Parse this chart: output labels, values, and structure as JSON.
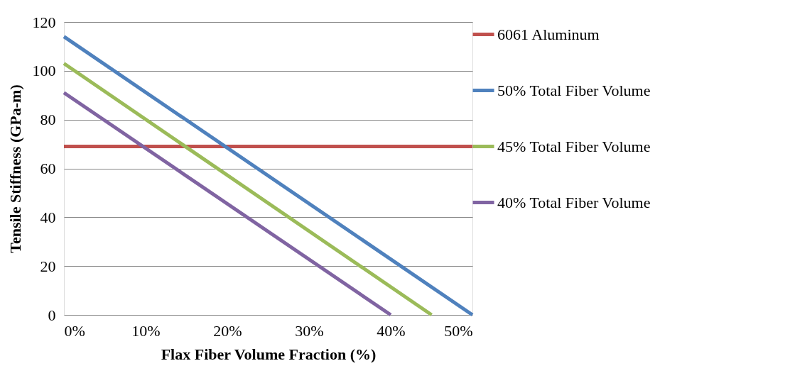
{
  "chart_data": {
    "type": "line",
    "xlabel": "Flax Fiber Volume Fraction (%)",
    "ylabel": "Tensile Stiffness (GPa-m)",
    "xlim": [
      0,
      50
    ],
    "xticks": [
      {
        "value": 0,
        "label": "0%"
      },
      {
        "value": 10,
        "label": "10%"
      },
      {
        "value": 20,
        "label": "20%"
      },
      {
        "value": 30,
        "label": "30%"
      },
      {
        "value": 40,
        "label": "40%"
      },
      {
        "value": 50,
        "label": "50%"
      }
    ],
    "ylim": [
      0,
      120
    ],
    "yticks": [
      0,
      20,
      40,
      60,
      80,
      100,
      120
    ],
    "grid": "y",
    "legend": "right",
    "marker": "none",
    "line_style": "solid",
    "series": [
      {
        "name": "6061 Aluminum",
        "color": "#c0504d",
        "x": [
          0,
          50
        ],
        "values": [
          69,
          69
        ]
      },
      {
        "name": "50% Total Fiber Volume",
        "color": "#4f81bd",
        "x": [
          0,
          50
        ],
        "values": [
          114,
          0
        ]
      },
      {
        "name": "45% Total Fiber Volume",
        "color": "#9bbb59",
        "x": [
          0,
          45
        ],
        "values": [
          103,
          0
        ]
      },
      {
        "name": "40% Total Fiber Volume",
        "color": "#8064a2",
        "x": [
          0,
          40
        ],
        "values": [
          91,
          0
        ]
      }
    ]
  }
}
